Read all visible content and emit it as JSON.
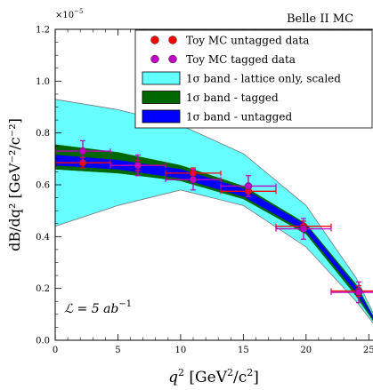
{
  "chart_data": {
    "type": "scatter",
    "experiment_label": "Belle II MC",
    "exponent_label": "×10",
    "exponent_power": "−5",
    "xlabel": {
      "main": "q",
      "sup": "2",
      "unit": " [GeV",
      "unit_sup": "2",
      "unit_tail": "/c",
      "unit_tail_sup": "2",
      "close": "]"
    },
    "ylabel": "dB/dq² [GeV⁻²/c⁻²]",
    "luminosity_label": "ℒ = 5 ab",
    "luminosity_sup": "−1",
    "xlim": [
      0,
      26.4
    ],
    "ylim": [
      0,
      1.2
    ],
    "x_ticks": [
      0,
      5,
      10,
      15,
      20,
      25
    ],
    "x_tick_labels": [
      "0",
      "5",
      "10",
      "15",
      "20",
      "25"
    ],
    "y_ticks": [
      0,
      0.2,
      0.4,
      0.6,
      0.8,
      1.0,
      1.2
    ],
    "y_tick_labels": [
      "0.0",
      "0.2",
      "0.4",
      "0.6",
      "0.8",
      "1.0",
      "1.2"
    ],
    "legend_position": "top-right",
    "legend": [
      {
        "label": "Toy MC untagged data",
        "kind": "marker",
        "color": "#ff0000"
      },
      {
        "label": "Toy MC tagged data",
        "kind": "marker",
        "color": "#c000c0"
      },
      {
        "label": "1σ band - lattice only, scaled",
        "kind": "fill",
        "color": "#66ffff"
      },
      {
        "label": "1σ band - tagged",
        "kind": "fill",
        "color": "#006600"
      },
      {
        "label": "1σ band - untagged",
        "kind": "fill",
        "color": "#0000ff"
      }
    ],
    "series": [
      {
        "name": "Toy MC untagged data",
        "color": "#ff0000",
        "points": [
          {
            "x": 2.2,
            "y": 0.685,
            "xerr": 2.2,
            "yerr": 0.02
          },
          {
            "x": 6.6,
            "y": 0.675,
            "xerr": 2.2,
            "yerr": 0.02
          },
          {
            "x": 11.0,
            "y": 0.645,
            "xerr": 2.2,
            "yerr": 0.02
          },
          {
            "x": 15.4,
            "y": 0.575,
            "xerr": 2.2,
            "yerr": 0.02
          },
          {
            "x": 19.8,
            "y": 0.44,
            "xerr": 2.2,
            "yerr": 0.02
          },
          {
            "x": 24.2,
            "y": 0.19,
            "xerr": 2.2,
            "yerr": 0.02
          }
        ]
      },
      {
        "name": "Toy MC tagged data",
        "color": "#c000c0",
        "points": [
          {
            "x": 2.2,
            "y": 0.73,
            "xerr": 2.2,
            "yerr": 0.04
          },
          {
            "x": 6.6,
            "y": 0.675,
            "xerr": 2.2,
            "yerr": 0.04
          },
          {
            "x": 11.0,
            "y": 0.62,
            "xerr": 2.2,
            "yerr": 0.04
          },
          {
            "x": 15.4,
            "y": 0.595,
            "xerr": 2.2,
            "yerr": 0.04
          },
          {
            "x": 19.8,
            "y": 0.43,
            "xerr": 2.2,
            "yerr": 0.04
          },
          {
            "x": 24.2,
            "y": 0.185,
            "xerr": 2.2,
            "yerr": 0.04
          }
        ]
      }
    ],
    "bands": [
      {
        "name": "1σ band - lattice only, scaled",
        "color": "#66ffff",
        "x": [
          0,
          5,
          10,
          15,
          20,
          24,
          26.4
        ],
        "upper": [
          0.93,
          0.89,
          0.83,
          0.72,
          0.52,
          0.24,
          0.0
        ],
        "lower": [
          0.44,
          0.52,
          0.58,
          0.52,
          0.36,
          0.15,
          0.0
        ]
      },
      {
        "name": "1σ band - tagged",
        "color": "#006600",
        "x": [
          0,
          5,
          10,
          15,
          20,
          24,
          26.4
        ],
        "upper": [
          0.755,
          0.725,
          0.675,
          0.595,
          0.45,
          0.215,
          0.0
        ],
        "lower": [
          0.66,
          0.645,
          0.615,
          0.545,
          0.41,
          0.17,
          0.0
        ]
      },
      {
        "name": "1σ band - untagged",
        "color": "#0000ff",
        "x": [
          0,
          5,
          10,
          15,
          20,
          24,
          26.4
        ],
        "upper": [
          0.715,
          0.695,
          0.66,
          0.585,
          0.445,
          0.205,
          0.0
        ],
        "lower": [
          0.675,
          0.66,
          0.625,
          0.555,
          0.42,
          0.185,
          0.0
        ]
      }
    ]
  }
}
